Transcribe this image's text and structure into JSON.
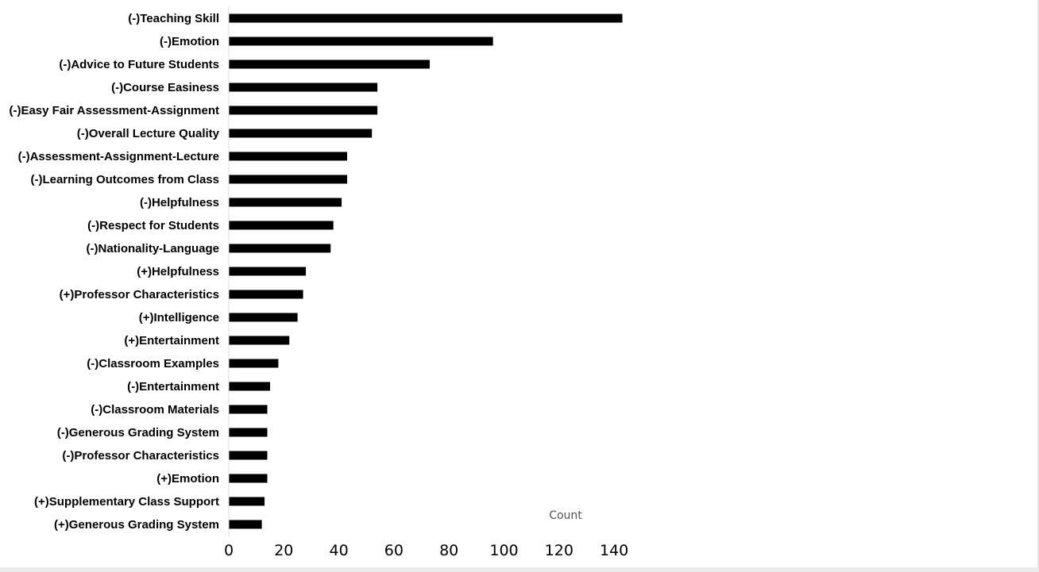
{
  "chart_data": {
    "type": "bar",
    "orientation": "horizontal",
    "categories": [
      "(-)Teaching Skill",
      "(-)Emotion",
      "(-)Advice to Future Students",
      "(-)Course Easiness",
      "(-)Easy Fair Assessment-Assignment",
      "(-)Overall Lecture Quality",
      "(-)Assessment-Assignment-Lecture",
      "(-)Learning Outcomes from Class",
      "(-)Helpfulness",
      "(-)Respect for Students",
      "(-)Nationality-Language",
      "(+)Helpfulness",
      "(+)Professor Characteristics",
      "(+)Intelligence",
      "(+)Entertainment",
      "(-)Classroom Examples",
      "(-)Entertainment",
      "(-)Classroom Materials",
      "(-)Generous Grading System",
      "(-)Professor Characteristics",
      "(+)Emotion",
      "(+)Supplementary Class Support",
      "(+)Generous Grading System"
    ],
    "values": [
      143,
      96,
      73,
      54,
      54,
      52,
      43,
      43,
      41,
      38,
      37,
      28,
      27,
      25,
      22,
      18,
      15,
      14,
      14,
      14,
      14,
      13,
      12
    ],
    "xlabel": "Count",
    "ylabel": "",
    "xlim": [
      0,
      140
    ],
    "xticks": [
      "0",
      "20",
      "40",
      "60",
      "80",
      "100",
      "120",
      "140"
    ],
    "grid": false,
    "legend": "none",
    "bar_color": "#000000"
  }
}
